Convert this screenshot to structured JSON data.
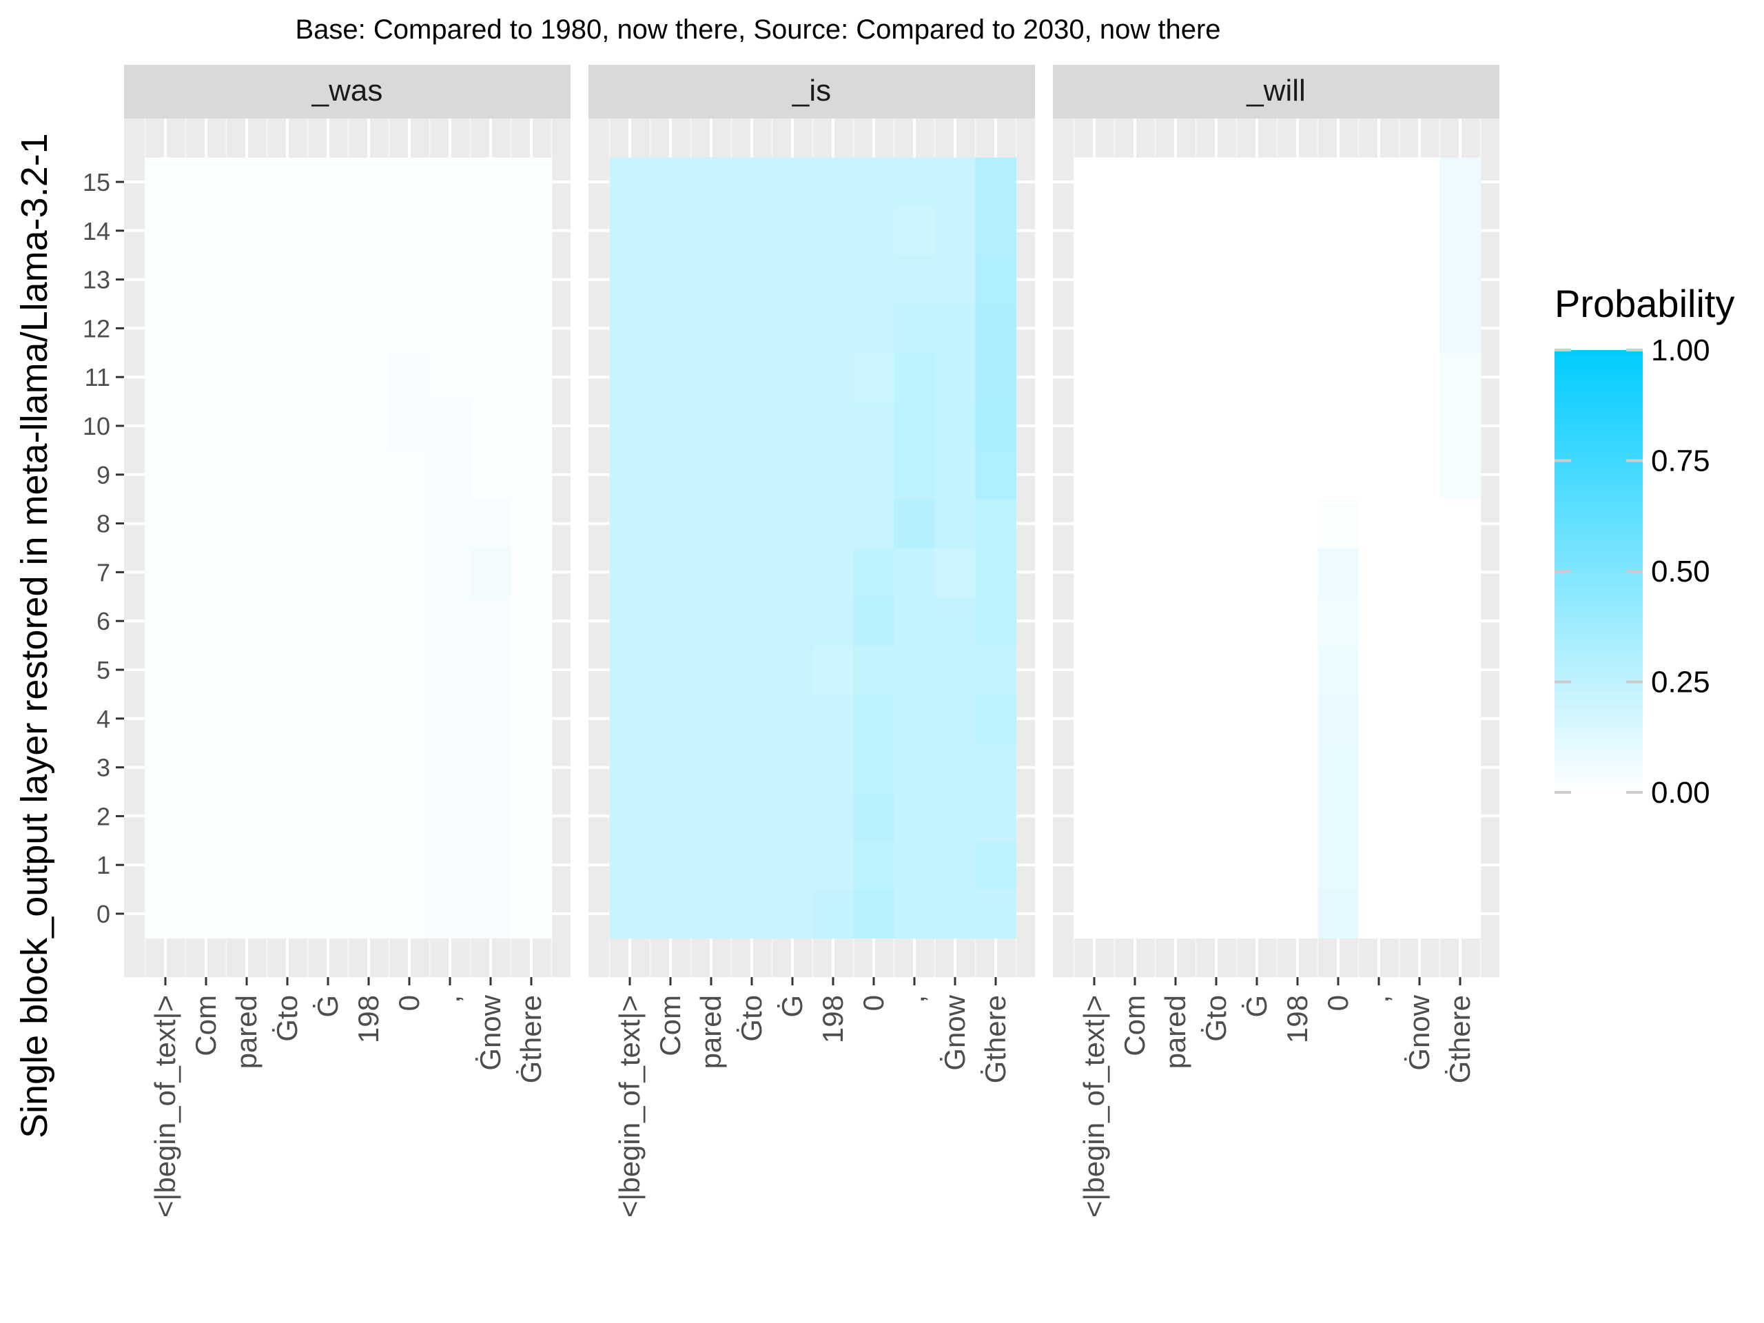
{
  "chart_data": {
    "type": "heatmap",
    "title": "Base: Compared to 1980, now there, Source: Compared to 2030, now there",
    "ylabel": "Single block_output layer restored in meta-llama/Llama-3.2-1",
    "legend": {
      "title": "Probability",
      "ticks": [
        "1.00",
        "0.75",
        "0.50",
        "0.25",
        "0.00"
      ],
      "low_color": "#ffffff",
      "high_color": "#00ccff",
      "placement": "right"
    },
    "y_ticks": [
      "0",
      "1",
      "2",
      "3",
      "4",
      "5",
      "6",
      "7",
      "8",
      "9",
      "10",
      "11",
      "12",
      "13",
      "14",
      "15"
    ],
    "x_tokens": [
      "<|begin_of_text|>",
      "Com",
      "pared",
      "Ġto",
      "Ġ",
      "198",
      "0",
      ",",
      "Ġnow",
      "Ġthere"
    ],
    "panels": [
      {
        "label": "_was",
        "values": [
          [
            0.02,
            0.02,
            0.02,
            0.02,
            0.02,
            0.02,
            0.02,
            0.03,
            0.03,
            0.02
          ],
          [
            0.02,
            0.02,
            0.02,
            0.02,
            0.02,
            0.02,
            0.02,
            0.03,
            0.03,
            0.02
          ],
          [
            0.02,
            0.02,
            0.02,
            0.02,
            0.02,
            0.02,
            0.02,
            0.03,
            0.03,
            0.02
          ],
          [
            0.02,
            0.02,
            0.02,
            0.02,
            0.02,
            0.02,
            0.02,
            0.03,
            0.03,
            0.02
          ],
          [
            0.02,
            0.02,
            0.02,
            0.02,
            0.02,
            0.02,
            0.02,
            0.03,
            0.03,
            0.02
          ],
          [
            0.02,
            0.02,
            0.02,
            0.02,
            0.02,
            0.02,
            0.02,
            0.03,
            0.03,
            0.02
          ],
          [
            0.02,
            0.02,
            0.02,
            0.02,
            0.02,
            0.02,
            0.02,
            0.03,
            0.03,
            0.02
          ],
          [
            0.02,
            0.02,
            0.02,
            0.02,
            0.02,
            0.02,
            0.02,
            0.03,
            0.05,
            0.02
          ],
          [
            0.02,
            0.02,
            0.02,
            0.02,
            0.02,
            0.02,
            0.02,
            0.03,
            0.03,
            0.02
          ],
          [
            0.02,
            0.02,
            0.02,
            0.02,
            0.02,
            0.02,
            0.02,
            0.03,
            0.02,
            0.02
          ],
          [
            0.02,
            0.02,
            0.02,
            0.02,
            0.02,
            0.02,
            0.03,
            0.03,
            0.02,
            0.02
          ],
          [
            0.02,
            0.02,
            0.02,
            0.02,
            0.02,
            0.02,
            0.03,
            0.02,
            0.02,
            0.02
          ],
          [
            0.02,
            0.02,
            0.02,
            0.02,
            0.02,
            0.02,
            0.02,
            0.02,
            0.02,
            0.02
          ],
          [
            0.02,
            0.02,
            0.02,
            0.02,
            0.02,
            0.02,
            0.02,
            0.02,
            0.02,
            0.02
          ],
          [
            0.02,
            0.02,
            0.02,
            0.02,
            0.02,
            0.02,
            0.02,
            0.02,
            0.02,
            0.02
          ],
          [
            0.02,
            0.02,
            0.02,
            0.02,
            0.02,
            0.02,
            0.02,
            0.02,
            0.02,
            0.02
          ]
        ]
      },
      {
        "label": "_is",
        "values": [
          [
            0.22,
            0.22,
            0.22,
            0.22,
            0.22,
            0.24,
            0.28,
            0.24,
            0.24,
            0.24
          ],
          [
            0.22,
            0.22,
            0.22,
            0.22,
            0.22,
            0.22,
            0.26,
            0.24,
            0.24,
            0.26
          ],
          [
            0.22,
            0.22,
            0.22,
            0.22,
            0.22,
            0.22,
            0.27,
            0.24,
            0.24,
            0.24
          ],
          [
            0.22,
            0.22,
            0.22,
            0.22,
            0.22,
            0.22,
            0.26,
            0.24,
            0.24,
            0.24
          ],
          [
            0.22,
            0.22,
            0.22,
            0.22,
            0.22,
            0.22,
            0.26,
            0.24,
            0.24,
            0.26
          ],
          [
            0.22,
            0.22,
            0.22,
            0.22,
            0.22,
            0.2,
            0.24,
            0.24,
            0.24,
            0.24
          ],
          [
            0.22,
            0.22,
            0.22,
            0.22,
            0.22,
            0.22,
            0.27,
            0.24,
            0.24,
            0.26
          ],
          [
            0.22,
            0.22,
            0.22,
            0.22,
            0.22,
            0.22,
            0.25,
            0.24,
            0.2,
            0.26
          ],
          [
            0.22,
            0.22,
            0.22,
            0.22,
            0.22,
            0.22,
            0.22,
            0.29,
            0.24,
            0.26
          ],
          [
            0.22,
            0.22,
            0.22,
            0.22,
            0.22,
            0.22,
            0.22,
            0.25,
            0.24,
            0.32
          ],
          [
            0.22,
            0.22,
            0.22,
            0.22,
            0.22,
            0.22,
            0.22,
            0.25,
            0.24,
            0.34
          ],
          [
            0.22,
            0.22,
            0.22,
            0.22,
            0.22,
            0.22,
            0.2,
            0.26,
            0.24,
            0.33
          ],
          [
            0.22,
            0.22,
            0.22,
            0.22,
            0.22,
            0.22,
            0.22,
            0.24,
            0.24,
            0.33
          ],
          [
            0.22,
            0.22,
            0.22,
            0.22,
            0.22,
            0.22,
            0.22,
            0.22,
            0.22,
            0.31
          ],
          [
            0.22,
            0.22,
            0.22,
            0.22,
            0.22,
            0.22,
            0.22,
            0.2,
            0.22,
            0.3
          ],
          [
            0.22,
            0.22,
            0.22,
            0.22,
            0.22,
            0.22,
            0.22,
            0.22,
            0.22,
            0.3
          ]
        ]
      },
      {
        "label": "_will",
        "values": [
          [
            0.0,
            0.0,
            0.0,
            0.0,
            0.0,
            0.0,
            0.11,
            0.0,
            0.0,
            0.0
          ],
          [
            0.0,
            0.0,
            0.0,
            0.0,
            0.0,
            0.0,
            0.1,
            0.0,
            0.0,
            0.0
          ],
          [
            0.0,
            0.0,
            0.0,
            0.0,
            0.0,
            0.0,
            0.1,
            0.0,
            0.0,
            0.0
          ],
          [
            0.0,
            0.0,
            0.0,
            0.0,
            0.0,
            0.0,
            0.1,
            0.0,
            0.0,
            0.0
          ],
          [
            0.0,
            0.0,
            0.0,
            0.0,
            0.0,
            0.0,
            0.09,
            0.0,
            0.0,
            0.0
          ],
          [
            0.0,
            0.0,
            0.0,
            0.0,
            0.0,
            0.0,
            0.08,
            0.0,
            0.0,
            0.0
          ],
          [
            0.0,
            0.0,
            0.0,
            0.0,
            0.0,
            0.0,
            0.06,
            0.0,
            0.0,
            0.0
          ],
          [
            0.0,
            0.0,
            0.0,
            0.0,
            0.0,
            0.0,
            0.07,
            0.0,
            0.0,
            0.0
          ],
          [
            0.0,
            0.0,
            0.0,
            0.0,
            0.0,
            0.0,
            0.02,
            0.0,
            0.0,
            0.0
          ],
          [
            0.0,
            0.0,
            0.0,
            0.0,
            0.0,
            0.0,
            0.0,
            0.0,
            0.0,
            0.04
          ],
          [
            0.0,
            0.0,
            0.0,
            0.0,
            0.0,
            0.0,
            0.0,
            0.0,
            0.0,
            0.04
          ],
          [
            0.0,
            0.0,
            0.0,
            0.0,
            0.0,
            0.0,
            0.0,
            0.0,
            0.0,
            0.04
          ],
          [
            0.0,
            0.0,
            0.0,
            0.0,
            0.0,
            0.0,
            0.0,
            0.0,
            0.0,
            0.07
          ],
          [
            0.0,
            0.0,
            0.0,
            0.0,
            0.0,
            0.0,
            0.0,
            0.0,
            0.0,
            0.07
          ],
          [
            0.0,
            0.0,
            0.0,
            0.0,
            0.0,
            0.0,
            0.0,
            0.0,
            0.0,
            0.07
          ],
          [
            0.0,
            0.0,
            0.0,
            0.0,
            0.0,
            0.0,
            0.0,
            0.0,
            0.0,
            0.07
          ]
        ]
      }
    ]
  }
}
